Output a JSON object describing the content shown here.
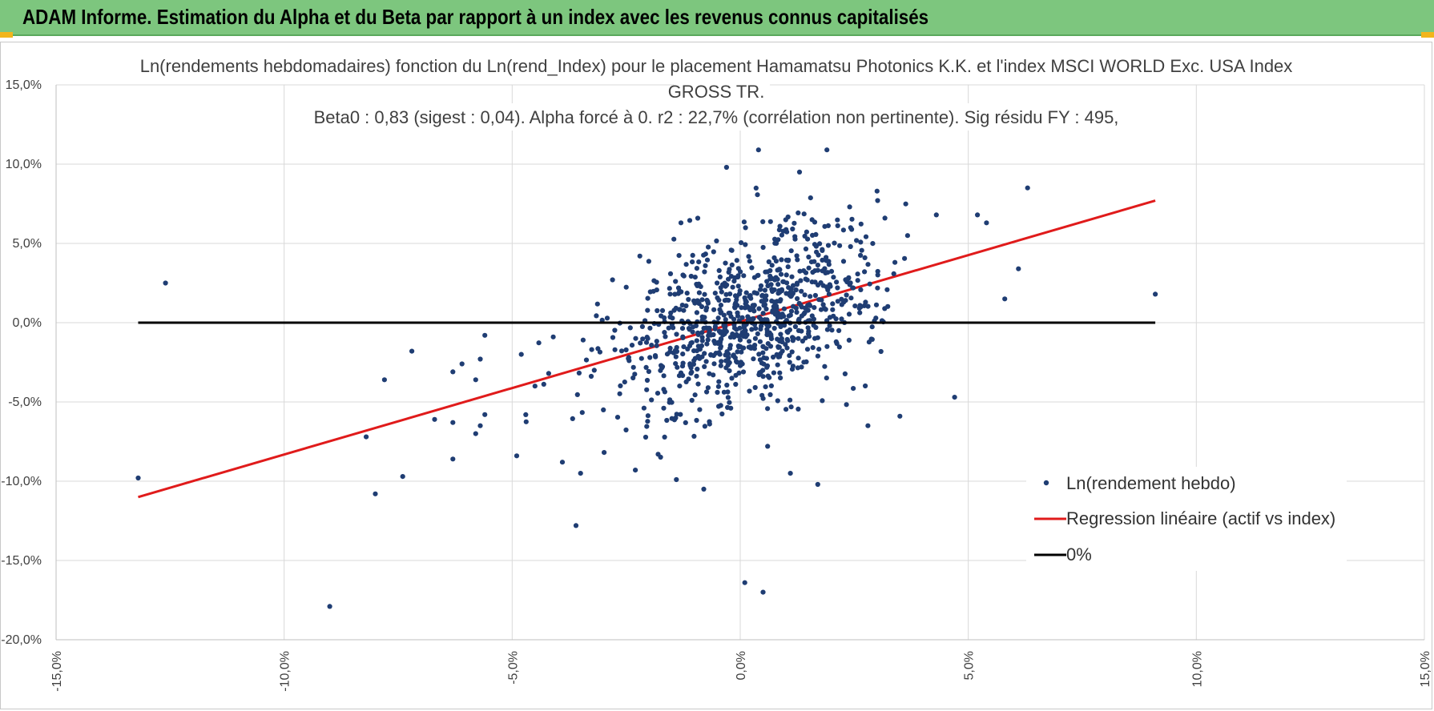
{
  "header": {
    "title": "ADAM Informe. Estimation du Alpha et du Beta par rapport à un index avec les revenus connus capitalisés"
  },
  "colors": {
    "header_bg": "#7dc67e",
    "points": "#1f3d73",
    "regression": "#e01b1b",
    "zero_line": "#000000",
    "grid": "#d9d9d9"
  },
  "chart_data": {
    "type": "scatter",
    "title_lines": [
      "Ln(rendements hebdomadaires) fonction du Ln(rend_Index) pour le placement Hamamatsu Photonics K.K. et l'index MSCI WORLD Exc. USA Index",
      "GROSS TR.",
      "Beta0 : 0,83 (sigest : 0,04). Alpha forcé à 0. r2 : 22,7% (corrélation non pertinente). Sig résidu FY : 495,"
    ],
    "xlim": [
      -15,
      15
    ],
    "ylim": [
      -20,
      15
    ],
    "x_ticks": [
      "-15,0%",
      "-10,0%",
      "-5,0%",
      "0,0%",
      "5,0%",
      "10,0%",
      "15,0%"
    ],
    "y_ticks": [
      "15,0%",
      "10,0%",
      "5,0%",
      "0,0%",
      "-5,0%",
      "-10,0%",
      "-15,0%",
      "-20,0%"
    ],
    "grid": true,
    "legend_position": "bottom-right",
    "series": [
      {
        "name": "Ln(rendement hebdo)",
        "kind": "points",
        "generated_cloud": {
          "count": 900,
          "beta": 0.83,
          "x_center": 0.2,
          "x_sd": 1.4,
          "resid_sd": 2.6,
          "seed": 7
        },
        "points": [
          [
            -13.2,
            -9.8
          ],
          [
            -12.6,
            2.5
          ],
          [
            -9.0,
            -17.9
          ],
          [
            -8.2,
            -7.2
          ],
          [
            -8.0,
            -10.8
          ],
          [
            -7.8,
            -3.6
          ],
          [
            -7.4,
            -9.7
          ],
          [
            -7.2,
            -1.8
          ],
          [
            -6.7,
            -6.1
          ],
          [
            -6.3,
            -8.6
          ],
          [
            -6.3,
            -6.3
          ],
          [
            -6.3,
            -3.1
          ],
          [
            -6.1,
            -2.6
          ],
          [
            -5.8,
            -7.0
          ],
          [
            -5.8,
            -3.6
          ],
          [
            -5.7,
            -6.5
          ],
          [
            -5.7,
            -2.3
          ],
          [
            -5.6,
            -5.8
          ],
          [
            -5.6,
            -0.8
          ],
          [
            -4.9,
            -8.4
          ],
          [
            -4.8,
            -2.0
          ],
          [
            -4.5,
            -4.0
          ],
          [
            -4.2,
            -3.2
          ],
          [
            -4.1,
            -0.9
          ],
          [
            -3.9,
            -8.8
          ],
          [
            -3.6,
            -12.8
          ],
          [
            -3.5,
            -9.5
          ],
          [
            -3.2,
            -3.0
          ],
          [
            -3.0,
            -5.5
          ],
          [
            -2.8,
            2.7
          ],
          [
            -2.3,
            -9.3
          ],
          [
            -2.2,
            4.2
          ],
          [
            -1.8,
            -8.3
          ],
          [
            -1.4,
            -9.9
          ],
          [
            -1.3,
            6.3
          ],
          [
            -0.8,
            -10.5
          ],
          [
            -0.3,
            9.8
          ],
          [
            0.1,
            -16.4
          ],
          [
            0.4,
            10.9
          ],
          [
            0.5,
            -17.0
          ],
          [
            0.6,
            -7.8
          ],
          [
            1.1,
            -9.5
          ],
          [
            1.3,
            9.5
          ],
          [
            1.7,
            -10.2
          ],
          [
            1.9,
            10.9
          ],
          [
            2.8,
            -6.5
          ],
          [
            3.0,
            8.3
          ],
          [
            3.5,
            -5.9
          ],
          [
            4.3,
            6.8
          ],
          [
            4.7,
            -4.7
          ],
          [
            5.2,
            6.8
          ],
          [
            5.4,
            6.3
          ],
          [
            5.8,
            1.5
          ],
          [
            6.1,
            3.4
          ],
          [
            6.3,
            8.5
          ],
          [
            9.1,
            1.8
          ]
        ]
      },
      {
        "name": "Regression linéaire (actif vs index)",
        "kind": "line",
        "x": [
          -13.2,
          9.1
        ],
        "y": [
          -11.0,
          7.7
        ]
      },
      {
        "name": "0%",
        "kind": "line",
        "x": [
          -13.2,
          9.1
        ],
        "y": [
          0,
          0
        ]
      }
    ]
  }
}
